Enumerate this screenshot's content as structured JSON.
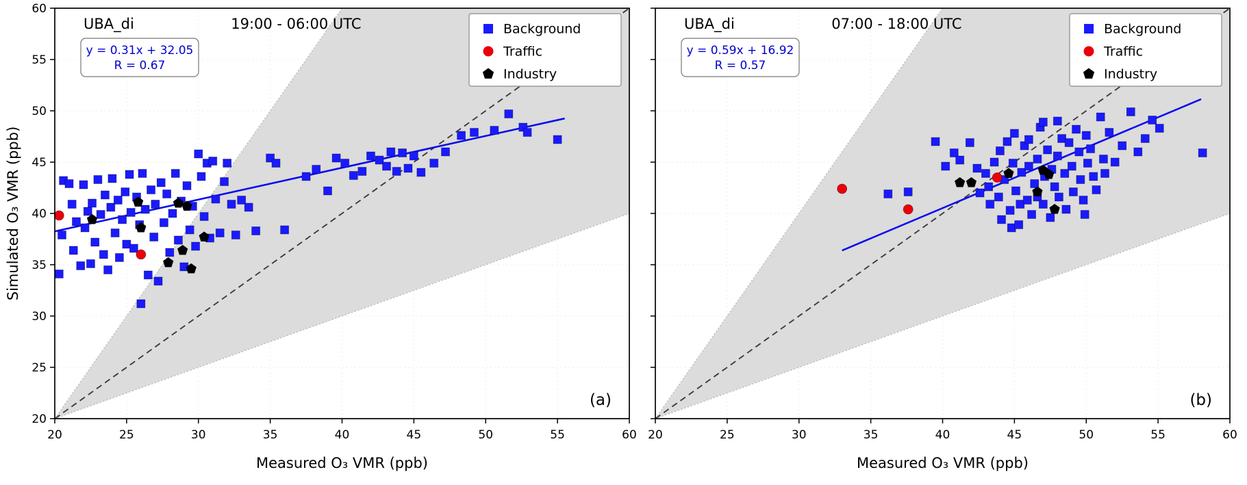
{
  "figure": {
    "xlabel": "Measured O₃ VMR (ppb)",
    "ylabel": "Simulated O₃ VMR (ppb)"
  },
  "colors": {
    "background_series": "#1a1aff",
    "traffic_series": "#e8000b",
    "industry_series": "#000000",
    "fit_line": "#0a0af0",
    "fit_text": "#0000cc",
    "one_to_one_line": "#3c3c3c",
    "envelope_fill": "#dcdcdc",
    "envelope_edge": "#b5b5b5",
    "axis": "#000000",
    "legend_border": "#8a8a8a",
    "fit_box_border": "#777777"
  },
  "legend": {
    "items": [
      {
        "label": "Background",
        "marker": "square",
        "color": "#1a1aff"
      },
      {
        "label": "Traffic",
        "marker": "circle",
        "color": "#e8000b"
      },
      {
        "label": "Industry",
        "marker": "pentagon",
        "color": "#000000"
      }
    ]
  },
  "chart_data": [
    {
      "type": "scatter",
      "panel_label": "(a)",
      "station": "UBA_di",
      "time_range": "19:00 - 06:00 UTC",
      "xlabel": "Measured O₃ VMR (ppb)",
      "ylabel": "Simulated O₃ VMR (ppb)",
      "xlim": [
        20,
        60
      ],
      "ylim": [
        20,
        60
      ],
      "xticks": [
        20,
        25,
        30,
        35,
        40,
        45,
        50,
        55,
        60
      ],
      "yticks": [
        20,
        25,
        30,
        35,
        40,
        45,
        50,
        55,
        60
      ],
      "show_y_tick_labels": true,
      "envelope": {
        "slopes": [
          0.5,
          2
        ]
      },
      "one_to_one": true,
      "fit": {
        "equation": "y = 0.31x + 32.05",
        "r_label": "R = 0.67",
        "slope": 0.31,
        "intercept": 32.05,
        "x_start": 20,
        "x_end": 55.5
      },
      "series": [
        {
          "name": "Background",
          "marker": "square",
          "color": "#1a1aff",
          "points": [
            [
              20.3,
              34.1
            ],
            [
              20.5,
              37.9
            ],
            [
              20.6,
              43.2
            ],
            [
              21.0,
              42.9
            ],
            [
              21.2,
              40.9
            ],
            [
              21.3,
              36.4
            ],
            [
              21.5,
              39.2
            ],
            [
              21.8,
              34.9
            ],
            [
              22.0,
              42.8
            ],
            [
              22.1,
              38.6
            ],
            [
              22.3,
              40.2
            ],
            [
              22.5,
              35.1
            ],
            [
              22.6,
              41.0
            ],
            [
              22.8,
              37.2
            ],
            [
              23.0,
              43.3
            ],
            [
              23.2,
              39.9
            ],
            [
              23.4,
              36.0
            ],
            [
              23.5,
              41.8
            ],
            [
              23.7,
              34.5
            ],
            [
              23.9,
              40.6
            ],
            [
              24.0,
              43.4
            ],
            [
              24.2,
              38.1
            ],
            [
              24.4,
              41.3
            ],
            [
              24.5,
              35.7
            ],
            [
              24.7,
              39.4
            ],
            [
              24.9,
              42.1
            ],
            [
              25.0,
              37.0
            ],
            [
              25.2,
              43.8
            ],
            [
              25.3,
              40.1
            ],
            [
              25.5,
              36.6
            ],
            [
              25.7,
              41.6
            ],
            [
              25.9,
              38.9
            ],
            [
              26.0,
              31.2
            ],
            [
              26.1,
              43.9
            ],
            [
              26.3,
              40.4
            ],
            [
              26.5,
              34.0
            ],
            [
              26.7,
              42.3
            ],
            [
              26.9,
              37.7
            ],
            [
              27.0,
              40.9
            ],
            [
              27.2,
              33.4
            ],
            [
              27.4,
              43.0
            ],
            [
              27.6,
              39.1
            ],
            [
              27.8,
              41.9
            ],
            [
              28.0,
              36.2
            ],
            [
              28.2,
              40.0
            ],
            [
              28.4,
              43.9
            ],
            [
              28.6,
              37.4
            ],
            [
              28.8,
              41.2
            ],
            [
              29.0,
              34.8
            ],
            [
              29.2,
              42.7
            ],
            [
              29.4,
              38.4
            ],
            [
              29.6,
              40.7
            ],
            [
              29.8,
              36.8
            ],
            [
              30.0,
              45.8
            ],
            [
              30.2,
              43.6
            ],
            [
              30.4,
              39.7
            ],
            [
              30.6,
              44.9
            ],
            [
              30.8,
              37.6
            ],
            [
              31.0,
              45.1
            ],
            [
              31.2,
              41.4
            ],
            [
              31.5,
              38.1
            ],
            [
              31.8,
              43.1
            ],
            [
              32.0,
              44.9
            ],
            [
              32.3,
              40.9
            ],
            [
              32.6,
              37.9
            ],
            [
              33.0,
              41.3
            ],
            [
              33.5,
              40.6
            ],
            [
              34.0,
              38.3
            ],
            [
              35.0,
              45.4
            ],
            [
              35.4,
              44.9
            ],
            [
              36.0,
              38.4
            ],
            [
              37.5,
              43.6
            ],
            [
              38.2,
              44.3
            ],
            [
              39.0,
              42.2
            ],
            [
              39.6,
              45.4
            ],
            [
              40.2,
              44.9
            ],
            [
              40.8,
              43.7
            ],
            [
              41.4,
              44.1
            ],
            [
              42.0,
              45.6
            ],
            [
              42.6,
              45.2
            ],
            [
              43.1,
              44.6
            ],
            [
              43.4,
              46.0
            ],
            [
              43.8,
              44.1
            ],
            [
              44.2,
              45.9
            ],
            [
              44.6,
              44.4
            ],
            [
              45.0,
              45.6
            ],
            [
              45.5,
              44.0
            ],
            [
              46.4,
              44.9
            ],
            [
              47.2,
              46.0
            ],
            [
              48.3,
              47.6
            ],
            [
              49.2,
              47.9
            ],
            [
              50.6,
              48.1
            ],
            [
              51.6,
              49.7
            ],
            [
              52.6,
              48.4
            ],
            [
              52.9,
              47.9
            ],
            [
              55.0,
              47.2
            ]
          ]
        },
        {
          "name": "Traffic",
          "marker": "circle",
          "color": "#e8000b",
          "points": [
            [
              20.3,
              39.8
            ],
            [
              26.0,
              36.0
            ]
          ]
        },
        {
          "name": "Industry",
          "marker": "pentagon",
          "color": "#000000",
          "points": [
            [
              22.6,
              39.4
            ],
            [
              25.8,
              41.1
            ],
            [
              26.0,
              38.6
            ],
            [
              27.9,
              35.2
            ],
            [
              28.6,
              41.0
            ],
            [
              29.2,
              40.7
            ],
            [
              28.9,
              36.4
            ],
            [
              29.5,
              34.6
            ],
            [
              30.4,
              37.7
            ]
          ]
        }
      ]
    },
    {
      "type": "scatter",
      "panel_label": "(b)",
      "station": "UBA_di",
      "time_range": "07:00 - 18:00 UTC",
      "xlabel": "Measured O₃ VMR (ppb)",
      "ylabel": "",
      "xlim": [
        20,
        60
      ],
      "ylim": [
        20,
        60
      ],
      "xticks": [
        20,
        25,
        30,
        35,
        40,
        45,
        50,
        55,
        60
      ],
      "yticks": [
        20,
        25,
        30,
        35,
        40,
        45,
        50,
        55,
        60
      ],
      "show_y_tick_labels": false,
      "envelope": {
        "slopes": [
          0.5,
          2
        ]
      },
      "one_to_one": true,
      "fit": {
        "equation": "y = 0.59x + 16.92",
        "r_label": "R = 0.57",
        "slope": 0.59,
        "intercept": 16.92,
        "x_start": 33,
        "x_end": 58
      },
      "series": [
        {
          "name": "Background",
          "marker": "square",
          "color": "#1a1aff",
          "points": [
            [
              36.2,
              41.9
            ],
            [
              37.6,
              42.1
            ],
            [
              39.5,
              47.0
            ],
            [
              40.2,
              44.6
            ],
            [
              40.8,
              45.9
            ],
            [
              41.2,
              45.2
            ],
            [
              41.9,
              46.9
            ],
            [
              42.4,
              44.4
            ],
            [
              42.6,
              42.0
            ],
            [
              43.0,
              43.9
            ],
            [
              43.2,
              42.6
            ],
            [
              43.3,
              40.9
            ],
            [
              43.6,
              45.0
            ],
            [
              43.9,
              41.6
            ],
            [
              44.0,
              46.1
            ],
            [
              44.1,
              39.4
            ],
            [
              44.3,
              43.3
            ],
            [
              44.5,
              47.0
            ],
            [
              44.7,
              40.3
            ],
            [
              44.8,
              38.6
            ],
            [
              44.9,
              44.9
            ],
            [
              45.0,
              47.8
            ],
            [
              45.1,
              42.2
            ],
            [
              45.3,
              38.9
            ],
            [
              45.4,
              40.9
            ],
            [
              45.5,
              44.0
            ],
            [
              45.7,
              46.6
            ],
            [
              45.9,
              41.3
            ],
            [
              46.0,
              44.6
            ],
            [
              46.0,
              47.2
            ],
            [
              46.2,
              39.9
            ],
            [
              46.4,
              42.9
            ],
            [
              46.6,
              45.3
            ],
            [
              46.6,
              41.6
            ],
            [
              46.8,
              48.4
            ],
            [
              47.0,
              40.9
            ],
            [
              47.0,
              48.9
            ],
            [
              47.1,
              43.6
            ],
            [
              47.3,
              46.2
            ],
            [
              47.5,
              39.6
            ],
            [
              47.6,
              44.3
            ],
            [
              47.8,
              42.6
            ],
            [
              48.0,
              45.6
            ],
            [
              48.0,
              49.0
            ],
            [
              48.1,
              41.6
            ],
            [
              48.3,
              47.3
            ],
            [
              48.5,
              43.9
            ],
            [
              48.6,
              40.4
            ],
            [
              48.8,
              46.9
            ],
            [
              49.0,
              44.6
            ],
            [
              49.1,
              42.1
            ],
            [
              49.3,
              48.2
            ],
            [
              49.5,
              46.0
            ],
            [
              49.6,
              43.3
            ],
            [
              49.8,
              41.3
            ],
            [
              49.9,
              39.9
            ],
            [
              50.0,
              47.6
            ],
            [
              50.1,
              44.9
            ],
            [
              50.3,
              46.3
            ],
            [
              50.5,
              43.6
            ],
            [
              50.7,
              42.3
            ],
            [
              51.0,
              49.4
            ],
            [
              51.2,
              45.3
            ],
            [
              51.3,
              43.9
            ],
            [
              51.6,
              47.9
            ],
            [
              52.0,
              45.0
            ],
            [
              52.5,
              46.6
            ],
            [
              53.1,
              49.9
            ],
            [
              53.6,
              46.0
            ],
            [
              54.1,
              47.3
            ],
            [
              54.6,
              49.1
            ],
            [
              55.1,
              48.3
            ],
            [
              58.1,
              45.9
            ]
          ]
        },
        {
          "name": "Traffic",
          "marker": "circle",
          "color": "#e8000b",
          "points": [
            [
              33.0,
              42.4
            ],
            [
              37.6,
              40.4
            ],
            [
              43.8,
              43.5
            ]
          ]
        },
        {
          "name": "Industry",
          "marker": "pentagon",
          "color": "#000000",
          "points": [
            [
              41.2,
              43.0
            ],
            [
              42.0,
              43.0
            ],
            [
              44.6,
              43.9
            ],
            [
              46.6,
              42.1
            ],
            [
              47.0,
              44.2
            ],
            [
              47.4,
              43.8
            ],
            [
              47.8,
              40.4
            ]
          ]
        }
      ]
    }
  ]
}
